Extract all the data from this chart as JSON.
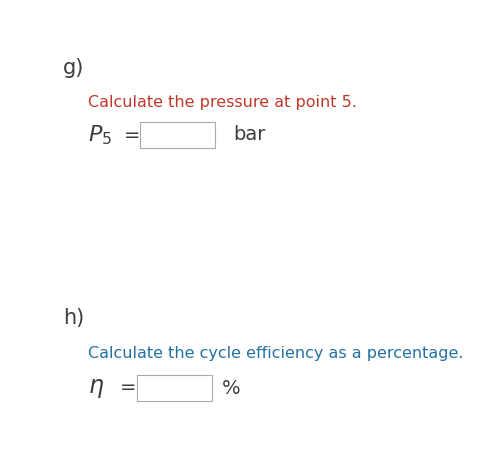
{
  "bg_color": "#ffffff",
  "label_g": "g)",
  "label_h": "h)",
  "text_g": "Calculate the pressure at point 5.",
  "text_h": "Calculate the cycle efficiency as a percentage.",
  "label_color": "#3d3d3d",
  "text_color_g": "#c0392b",
  "text_color_h": "#2471a3",
  "formula_p": "$P_5$",
  "equals": "=",
  "unit_bar": "bar",
  "formula_eta": "$\\eta$",
  "unit_pct": "%",
  "font_size_label": 15,
  "font_size_text": 11.5,
  "font_size_formula": 14
}
